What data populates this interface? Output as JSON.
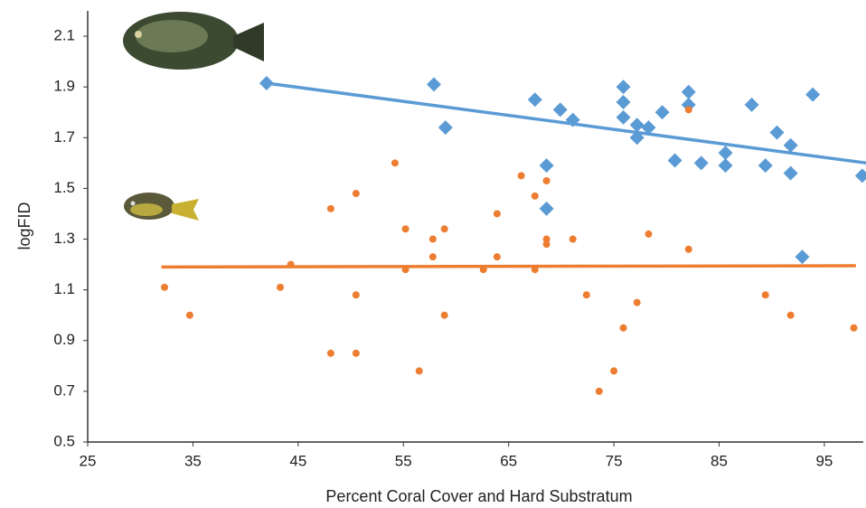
{
  "chart_data": {
    "type": "scatter",
    "x_label": "Percent Coral Cover and Hard Substratum",
    "y_label": "logFID",
    "xlim": [
      25,
      98.7
    ],
    "ylim": [
      0.5,
      2.2
    ],
    "xticks": [
      25,
      35,
      45,
      55,
      65,
      75,
      85,
      95
    ],
    "yticks": [
      0.5,
      0.7,
      0.9,
      1.1,
      1.3,
      1.5,
      1.7,
      1.9,
      2.1
    ],
    "series": [
      {
        "color": "#5b9bd5",
        "marker": "diamond",
        "x": [
          42.0,
          57.9,
          59.0,
          67.5,
          69.9,
          71.1,
          68.6,
          68.6,
          75.9,
          75.9,
          75.9,
          77.2,
          77.2,
          78.3,
          79.6,
          80.8,
          82.1,
          82.1,
          83.3,
          85.6,
          85.6,
          88.1,
          89.4,
          90.5,
          91.8,
          91.8,
          92.9,
          93.9,
          98.6
        ],
        "values": [
          1.915,
          1.91,
          1.74,
          1.85,
          1.81,
          1.77,
          1.59,
          1.42,
          1.9,
          1.84,
          1.78,
          1.75,
          1.7,
          1.74,
          1.8,
          1.61,
          1.88,
          1.83,
          1.6,
          1.64,
          1.59,
          1.83,
          1.59,
          1.72,
          1.67,
          1.56,
          1.23,
          1.87,
          1.55
        ],
        "trend": {
          "x": [
            42,
            99
          ],
          "values": [
            1.915,
            1.6
          ]
        }
      },
      {
        "color": "#ed7d31",
        "marker": "circle",
        "x": [
          32.3,
          34.7,
          43.3,
          44.3,
          48.1,
          48.1,
          50.5,
          50.5,
          50.5,
          54.2,
          55.2,
          55.2,
          56.5,
          57.8,
          57.8,
          58.9,
          58.9,
          62.6,
          63.9,
          63.9,
          66.2,
          67.5,
          67.5,
          68.6,
          68.6,
          68.6,
          71.1,
          72.4,
          73.6,
          75.0,
          75.9,
          77.2,
          78.3,
          82.1,
          82.1,
          89.4,
          91.8,
          97.8
        ],
        "values": [
          1.11,
          1.0,
          1.11,
          1.2,
          1.42,
          0.85,
          1.48,
          1.08,
          0.85,
          1.6,
          1.34,
          1.18,
          0.78,
          1.3,
          1.23,
          1.34,
          1.0,
          1.18,
          1.4,
          1.23,
          1.55,
          1.47,
          1.18,
          1.53,
          1.3,
          1.28,
          1.3,
          1.08,
          0.7,
          0.78,
          0.95,
          1.05,
          1.32,
          1.26,
          1.81,
          1.08,
          1.0,
          0.95
        ],
        "trend": {
          "x": [
            32,
            98
          ],
          "values": [
            1.19,
            1.195
          ]
        }
      }
    ]
  }
}
